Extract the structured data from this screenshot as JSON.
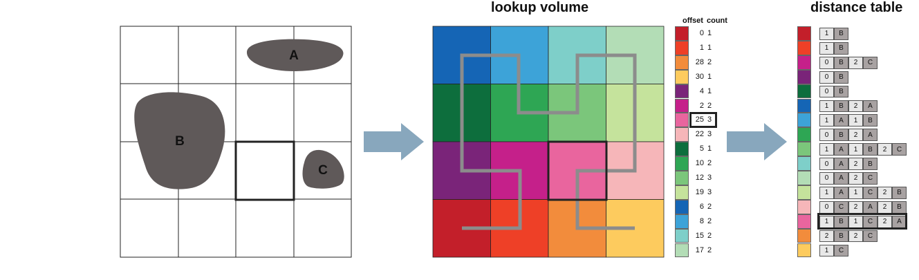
{
  "spatial_grid": {
    "shapes": [
      {
        "label": "A",
        "color": "#5f5959"
      },
      {
        "label": "B",
        "color": "#5f5959"
      },
      {
        "label": "C",
        "color": "#5f5959"
      }
    ]
  },
  "lookup_volume": {
    "title": "lookup volume",
    "grid_colors": [
      [
        "#1565b5",
        "#3da3d8",
        "#7ecfc9",
        "#b3ddb6"
      ],
      [
        "#0d6e3d",
        "#2ea654",
        "#7bc67b",
        "#c5e39c"
      ],
      [
        "#7a2479",
        "#c5208a",
        "#e9659e",
        "#f6b6b9"
      ],
      [
        "#c31f2a",
        "#ee4027",
        "#f28c3c",
        "#fdcb5e"
      ]
    ]
  },
  "offset_table": {
    "headers": {
      "offset": "offset",
      "count": "count"
    },
    "rows": [
      {
        "color": "#c31f2a",
        "offset": "0",
        "count": "1"
      },
      {
        "color": "#ee4027",
        "offset": "1",
        "count": "1"
      },
      {
        "color": "#f28c3c",
        "offset": "28",
        "count": "2"
      },
      {
        "color": "#fdcb5e",
        "offset": "30",
        "count": "1"
      },
      {
        "color": "#7a2479",
        "offset": "4",
        "count": "1"
      },
      {
        "color": "#c5208a",
        "offset": "2",
        "count": "2"
      },
      {
        "color": "#e9659e",
        "offset": "25",
        "count": "3"
      },
      {
        "color": "#f6b6b9",
        "offset": "22",
        "count": "3"
      },
      {
        "color": "#0d6e3d",
        "offset": "5",
        "count": "1"
      },
      {
        "color": "#2ea654",
        "offset": "10",
        "count": "2"
      },
      {
        "color": "#7bc67b",
        "offset": "12",
        "count": "3"
      },
      {
        "color": "#c5e39c",
        "offset": "19",
        "count": "3"
      },
      {
        "color": "#1565b5",
        "offset": "6",
        "count": "2"
      },
      {
        "color": "#3da3d8",
        "offset": "8",
        "count": "2"
      },
      {
        "color": "#7ecfc9",
        "offset": "15",
        "count": "2"
      },
      {
        "color": "#b3ddb6",
        "offset": "17",
        "count": "2"
      }
    ]
  },
  "distance_table": {
    "title": "distance table",
    "rows": [
      {
        "color": "#c31f2a",
        "cells": [
          "1",
          "B"
        ]
      },
      {
        "color": "#ee4027",
        "cells": [
          "1",
          "B"
        ]
      },
      {
        "color": "#c5208a",
        "cells": [
          "0",
          "B",
          "2",
          "C"
        ]
      },
      {
        "color": "#7a2479",
        "cells": [
          "0",
          "B"
        ]
      },
      {
        "color": "#0d6e3d",
        "cells": [
          "0",
          "B"
        ]
      },
      {
        "color": "#1565b5",
        "cells": [
          "1",
          "B",
          "2",
          "A"
        ]
      },
      {
        "color": "#3da3d8",
        "cells": [
          "1",
          "A",
          "1",
          "B"
        ]
      },
      {
        "color": "#2ea654",
        "cells": [
          "0",
          "B",
          "2",
          "A"
        ]
      },
      {
        "color": "#7bc67b",
        "cells": [
          "1",
          "A",
          "1",
          "B",
          "2",
          "C"
        ]
      },
      {
        "color": "#7ecfc9",
        "cells": [
          "0",
          "A",
          "2",
          "B"
        ]
      },
      {
        "color": "#b3ddb6",
        "cells": [
          "0",
          "A",
          "2",
          "C"
        ]
      },
      {
        "color": "#c5e39c",
        "cells": [
          "1",
          "A",
          "1",
          "C",
          "2",
          "B"
        ]
      },
      {
        "color": "#f6b6b9",
        "cells": [
          "0",
          "C",
          "2",
          "A",
          "2",
          "B"
        ]
      },
      {
        "color": "#e9659e",
        "cells": [
          "1",
          "B",
          "1",
          "C",
          "2",
          "A"
        ]
      },
      {
        "color": "#f28c3c",
        "cells": [
          "2",
          "B",
          "2",
          "C"
        ]
      },
      {
        "color": "#fdcb5e",
        "cells": [
          "1",
          "C"
        ]
      }
    ]
  },
  "arrow_color": "#88a7bd"
}
